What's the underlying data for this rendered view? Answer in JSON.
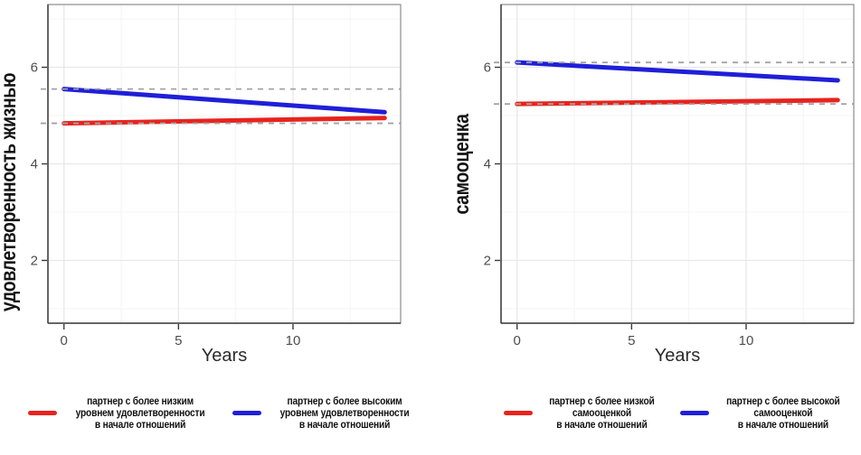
{
  "figure": {
    "background": "#ffffff",
    "colors": {
      "red": "#e8231e",
      "blue": "#1f1fd8",
      "reference_dash": "#a3a3a3",
      "panel_border": "#8c8c8c",
      "axis_line": "#3a3a3a",
      "tick_label": "#4d4d4d",
      "axis_title": "#141414",
      "x_title": "#2b2b2b",
      "grid_major": "#e8e8ec",
      "grid_minor": "#f5f3f7"
    }
  },
  "chart_data": [
    {
      "type": "line",
      "title": "",
      "ylabel": "удовлетворенность жизнью",
      "xlabel": "Years",
      "xlim": [
        -0.7,
        14.7
      ],
      "ylim": [
        0.7,
        7.3
      ],
      "x_ticks": [
        0,
        5,
        10
      ],
      "y_ticks": [
        2,
        4,
        6
      ],
      "x_minor": [
        2.5,
        7.5,
        12.5
      ],
      "y_minor": [
        1,
        3,
        5,
        7
      ],
      "grid": "on",
      "legend_position": "bottom",
      "series": [
        {
          "name": "партнер с более низким уровнем удовлетворенности в начале отношений",
          "legend_lines": [
            "партнер с более низким",
            "уровнем удовлетворенности",
            "в начале отношений"
          ],
          "color_key": "red",
          "x": [
            0,
            14
          ],
          "y": [
            4.84,
            4.95
          ],
          "ref_value": 4.84
        },
        {
          "name": "партнер с более высоким уровнем удовлетворенности в начале отношений",
          "legend_lines": [
            "партнер с более высоким",
            "уровнем удовлетворенности",
            "в начале отношений"
          ],
          "color_key": "blue",
          "x": [
            0,
            14
          ],
          "y": [
            5.55,
            5.07
          ],
          "ref_value": 5.55
        }
      ]
    },
    {
      "type": "line",
      "title": "",
      "ylabel": "самооценка",
      "xlabel": "Years",
      "xlim": [
        -0.7,
        14.7
      ],
      "ylim": [
        0.7,
        7.3
      ],
      "x_ticks": [
        0,
        5,
        10
      ],
      "y_ticks": [
        2,
        4,
        6
      ],
      "x_minor": [
        2.5,
        7.5,
        12.5
      ],
      "y_minor": [
        1,
        3,
        5,
        7
      ],
      "grid": "on",
      "legend_position": "bottom",
      "series": [
        {
          "name": "партнер с более низкой самооценкой в начале отношений",
          "legend_lines": [
            "партнер с более низкой",
            "самооценкой",
            "в начале отношений"
          ],
          "color_key": "red",
          "x": [
            0,
            14
          ],
          "y": [
            5.24,
            5.32
          ],
          "ref_value": 5.24
        },
        {
          "name": "партнер с более высокой самооценкой в начале отношений",
          "legend_lines": [
            "партнер с более высокой",
            "самооценкой",
            "в начале отношений"
          ],
          "color_key": "blue",
          "x": [
            0,
            14
          ],
          "y": [
            6.1,
            5.73
          ],
          "ref_value": 6.1
        }
      ]
    }
  ]
}
